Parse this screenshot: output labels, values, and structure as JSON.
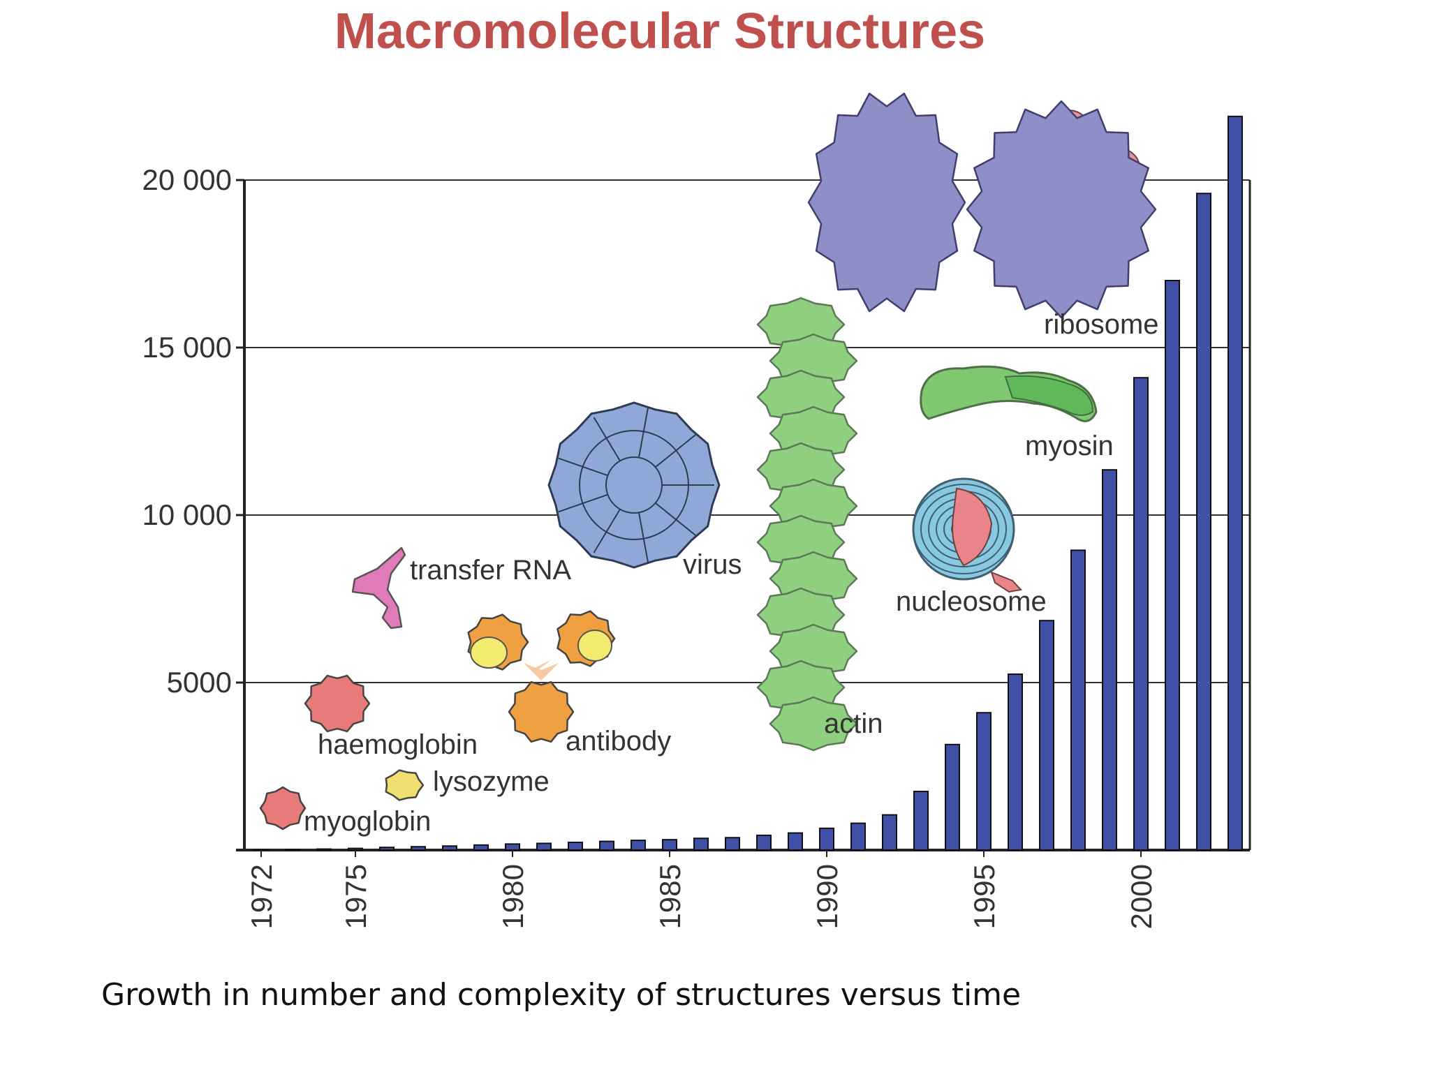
{
  "slide": {
    "title": "Macromolecular Structures",
    "caption": "Growth in number and complexity of structures versus time",
    "title_color": "#c0504d"
  },
  "chart_data": {
    "type": "bar",
    "bar_color": "#3f50a6",
    "ylim": [
      0,
      20000
    ],
    "yticks": [
      {
        "value": 5000,
        "label": "5000"
      },
      {
        "value": 10000,
        "label": "10 000"
      },
      {
        "value": 15000,
        "label": "15 000"
      },
      {
        "value": 20000,
        "label": "20 000"
      }
    ],
    "grid": true,
    "xticks": [
      "1972",
      "1975",
      "1980",
      "1985",
      "1990",
      "1995",
      "2000"
    ],
    "x": [
      1972,
      1973,
      1974,
      1975,
      1976,
      1977,
      1978,
      1979,
      1980,
      1981,
      1982,
      1983,
      1984,
      1985,
      1986,
      1987,
      1988,
      1989,
      1990,
      1991,
      1992,
      1993,
      1994,
      1995,
      1996,
      1997,
      1998,
      1999,
      2000,
      2001,
      2002,
      2003
    ],
    "values": [
      10,
      20,
      30,
      50,
      80,
      100,
      120,
      150,
      180,
      200,
      230,
      260,
      290,
      310,
      350,
      370,
      440,
      510,
      650,
      800,
      1050,
      1750,
      3150,
      4100,
      5250,
      6850,
      8950,
      11350,
      14100,
      17000,
      19600,
      21900
    ],
    "annotations": [
      {
        "name": "myoglobin",
        "label": "myoglobin",
        "color": "#e87a7a"
      },
      {
        "name": "lysozyme",
        "label": "lysozyme",
        "color": "#f0e070"
      },
      {
        "name": "haemoglobin",
        "label": "haemoglobin",
        "color": "#e87a7a"
      },
      {
        "name": "transfer-rna",
        "label": "transfer RNA",
        "color": "#e07ab8"
      },
      {
        "name": "antibody",
        "label": "antibody",
        "color": "#f0a040"
      },
      {
        "name": "virus",
        "label": "virus",
        "color": "#8fa8d8"
      },
      {
        "name": "actin",
        "label": "actin",
        "color": "#8fcf80"
      },
      {
        "name": "nucleosome",
        "label": "nucleosome",
        "color": "#88c8e0"
      },
      {
        "name": "myosin",
        "label": "myosin",
        "color": "#7fc870"
      },
      {
        "name": "ribosome",
        "label": "ribosome",
        "color": "#8f8fc8"
      }
    ]
  }
}
